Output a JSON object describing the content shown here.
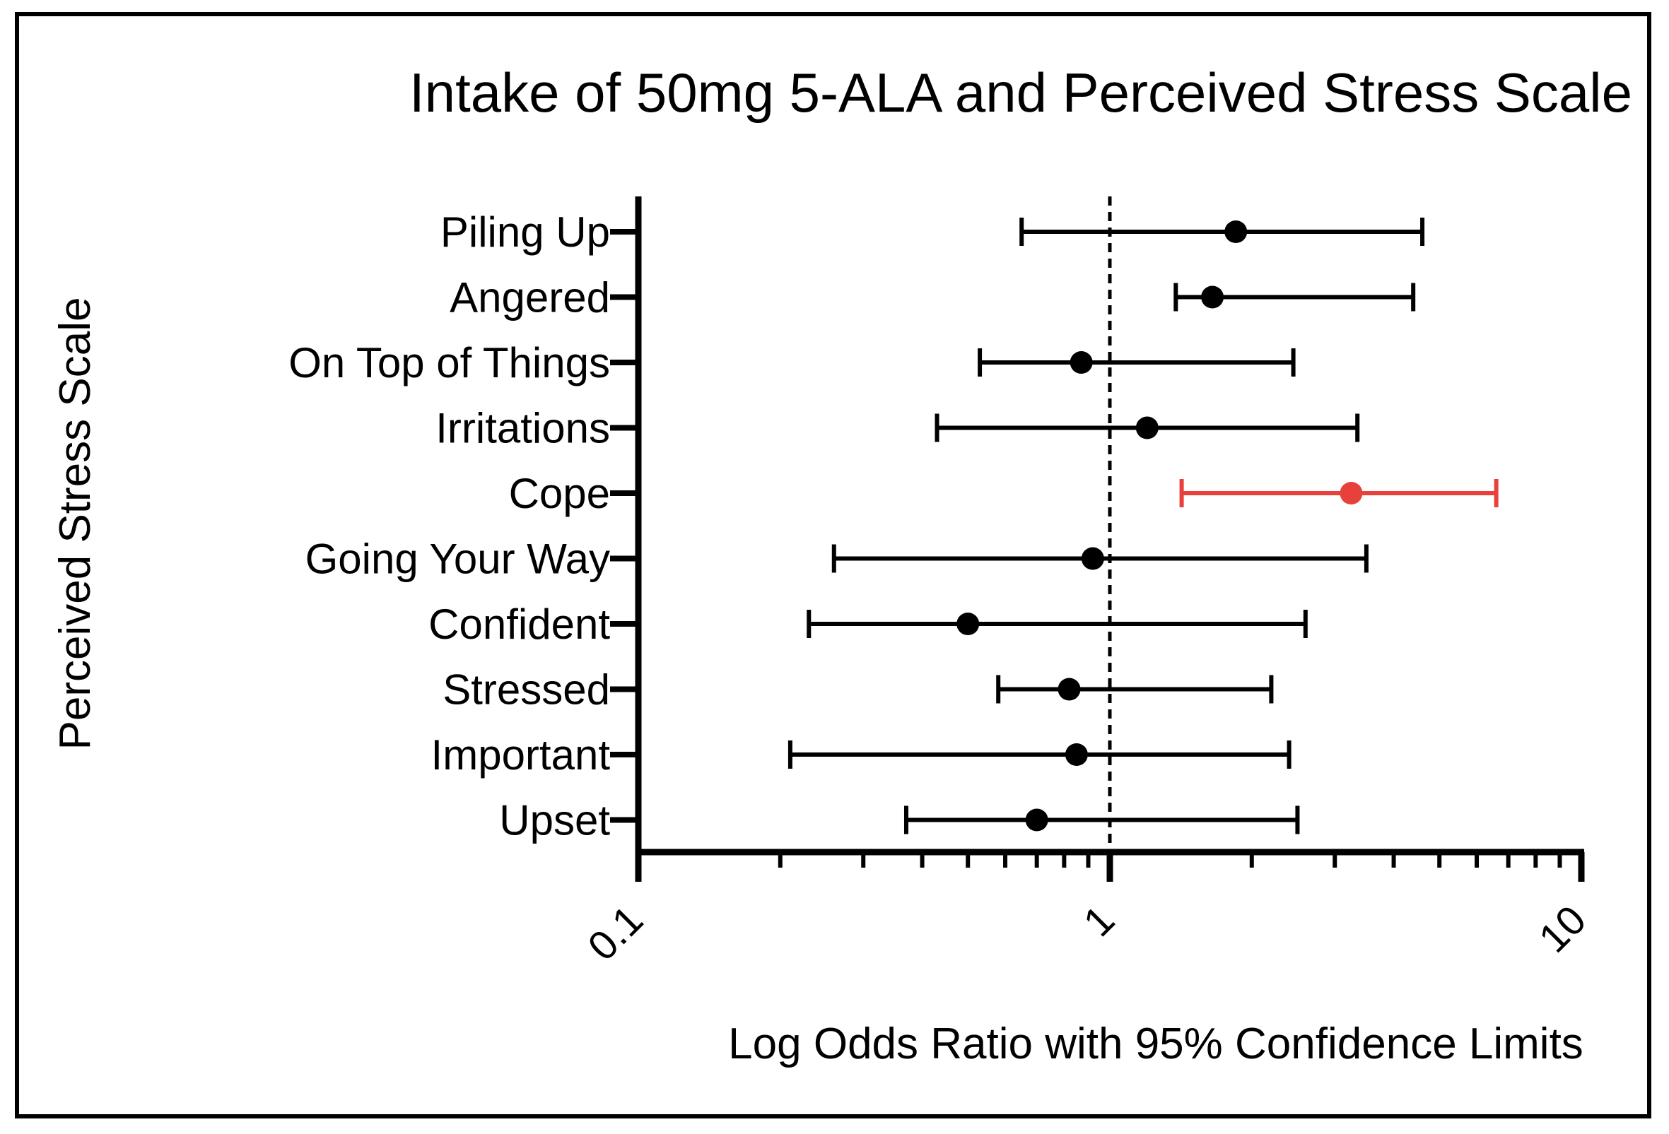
{
  "chart_data": {
    "type": "forest",
    "title": "Intake of 50mg 5-ALA and Perceived Stress Scale",
    "xlabel": "Log Odds Ratio with 95% Confidence Limits",
    "ylabel": "Perceived Stress Scale",
    "xscale": "log",
    "xlim": [
      0.1,
      10
    ],
    "xticks": [
      "0.1",
      "1",
      "10"
    ],
    "reference_line": 1,
    "colors": {
      "default": "#000000",
      "highlight": "#e8403a"
    },
    "series": [
      {
        "name": "Piling Up",
        "estimate": 1.85,
        "lower": 0.65,
        "upper": 4.6,
        "highlight": false
      },
      {
        "name": "Angered",
        "estimate": 1.65,
        "lower": 1.38,
        "upper": 4.4,
        "highlight": false
      },
      {
        "name": "On Top of Things",
        "estimate": 0.87,
        "lower": 0.53,
        "upper": 2.45,
        "highlight": false
      },
      {
        "name": "Irritations",
        "estimate": 1.2,
        "lower": 0.43,
        "upper": 3.35,
        "highlight": false
      },
      {
        "name": "Cope",
        "estimate": 3.25,
        "lower": 1.42,
        "upper": 6.6,
        "highlight": true
      },
      {
        "name": "Going Your Way",
        "estimate": 0.92,
        "lower": 0.26,
        "upper": 3.5,
        "highlight": false
      },
      {
        "name": "Confident",
        "estimate": 0.5,
        "lower": 0.23,
        "upper": 2.6,
        "highlight": false
      },
      {
        "name": "Stressed",
        "estimate": 0.82,
        "lower": 0.58,
        "upper": 2.2,
        "highlight": false
      },
      {
        "name": "Important",
        "estimate": 0.85,
        "lower": 0.21,
        "upper": 2.4,
        "highlight": false
      },
      {
        "name": "Upset",
        "estimate": 0.7,
        "lower": 0.37,
        "upper": 2.5,
        "highlight": false
      }
    ]
  }
}
